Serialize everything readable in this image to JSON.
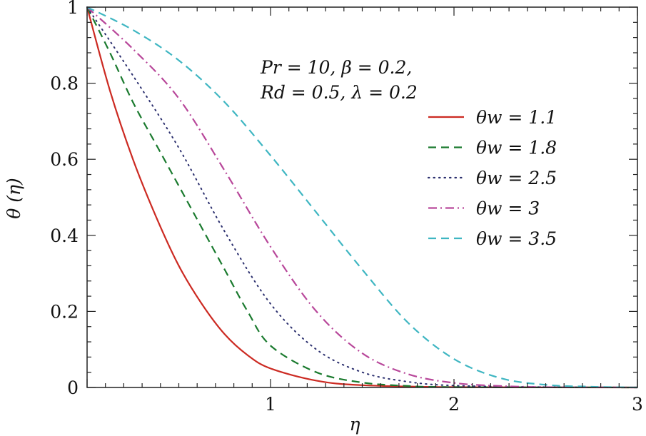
{
  "chart_data": {
    "type": "line",
    "xlabel": "η",
    "ylabel": "θ (η)",
    "xlim": [
      0,
      3
    ],
    "ylim": [
      0,
      1
    ],
    "xticks": [
      "1",
      "2",
      "3"
    ],
    "xtick_values": [
      1,
      2,
      3
    ],
    "yticks": [
      "0",
      "0.2",
      "0.4",
      "0.6",
      "0.8",
      "1"
    ],
    "ytick_values": [
      0,
      0.2,
      0.4,
      0.6,
      0.8,
      1
    ],
    "x_minor_step": 0.1,
    "y_minor_step": 0.04,
    "grid": false,
    "legend_placement": "right",
    "annotation": [
      "Pr = 10, β = 0.2,",
      "Rd = 0.5, λ = 0.2"
    ],
    "series": [
      {
        "name": "θw = 1.1",
        "color": "#cc2a22",
        "style": "solid",
        "x": [
          0,
          0.125,
          0.25,
          0.375,
          0.5,
          0.625,
          0.75,
          0.875,
          1,
          1.25,
          1.5,
          2,
          3
        ],
        "y": [
          1,
          0.78,
          0.6,
          0.45,
          0.32,
          0.22,
          0.14,
          0.085,
          0.05,
          0.018,
          0.006,
          0.001,
          0
        ]
      },
      {
        "name": "θw = 1.8",
        "color": "#1a7a2e",
        "style": "dashed",
        "x": [
          0,
          0.125,
          0.25,
          0.375,
          0.5,
          0.625,
          0.75,
          0.875,
          1,
          1.25,
          1.5,
          1.75,
          2,
          3
        ],
        "y": [
          1,
          0.88,
          0.75,
          0.64,
          0.53,
          0.42,
          0.31,
          0.2,
          0.11,
          0.04,
          0.013,
          0.004,
          0.001,
          0
        ]
      },
      {
        "name": "θw = 2.5",
        "color": "#2b2f6e",
        "style": "dotted",
        "x": [
          0,
          0.25,
          0.5,
          0.75,
          1,
          1.25,
          1.5,
          1.75,
          2,
          2.5,
          3
        ],
        "y": [
          1,
          0.82,
          0.63,
          0.41,
          0.22,
          0.1,
          0.04,
          0.015,
          0.005,
          0.001,
          0
        ]
      },
      {
        "name": "θw = 3",
        "color": "#b8479a",
        "style": "dashdot",
        "x": [
          0,
          0.25,
          0.5,
          0.75,
          1,
          1.25,
          1.5,
          1.75,
          2,
          2.25,
          2.5,
          3
        ],
        "y": [
          1,
          0.89,
          0.76,
          0.57,
          0.37,
          0.2,
          0.09,
          0.035,
          0.012,
          0.004,
          0.001,
          0
        ]
      },
      {
        "name": "θw = 3.5",
        "color": "#3fb6c2",
        "style": "dashed",
        "x": [
          0,
          0.25,
          0.5,
          0.75,
          1,
          1.25,
          1.5,
          1.75,
          2,
          2.25,
          2.5,
          2.75,
          3
        ],
        "y": [
          1,
          0.94,
          0.86,
          0.75,
          0.61,
          0.46,
          0.31,
          0.17,
          0.075,
          0.025,
          0.007,
          0.002,
          0
        ]
      }
    ]
  }
}
